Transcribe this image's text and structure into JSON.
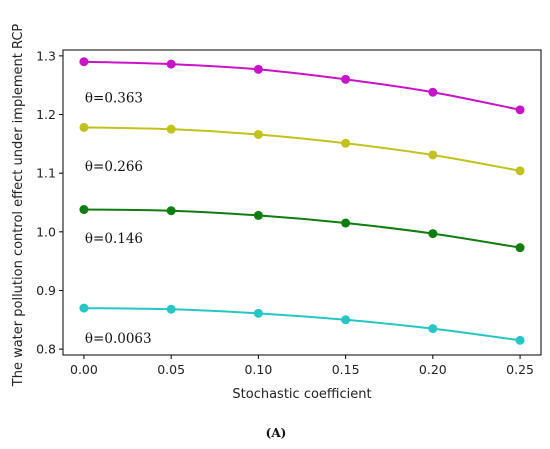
{
  "chart_data": {
    "type": "line",
    "xlabel": "Stochastic coefficient",
    "ylabel": "The water pollution control effect under implement RCP",
    "x": [
      0.0,
      0.05,
      0.1,
      0.15,
      0.2,
      0.25
    ],
    "x_ticks": [
      "0.00",
      "0.05",
      "0.10",
      "0.15",
      "0.20",
      "0.25"
    ],
    "y_ticks": [
      "0.8",
      "0.9",
      "1.0",
      "1.1",
      "1.2",
      "1.3"
    ],
    "xlim": [
      -0.012,
      0.262
    ],
    "ylim": [
      0.79,
      1.31
    ],
    "grid": false,
    "legend": "none",
    "series": [
      {
        "label_text": "θ=0.363",
        "label_at": [
          0.0,
          1.228
        ],
        "color": "#c814c8",
        "values": [
          1.29,
          1.286,
          1.277,
          1.26,
          1.238,
          1.208
        ]
      },
      {
        "label_text": "θ=0.266",
        "label_at": [
          0.0,
          1.111
        ],
        "color": "#c2c21e",
        "values": [
          1.178,
          1.175,
          1.166,
          1.151,
          1.131,
          1.104
        ]
      },
      {
        "label_text": "θ=0.146",
        "label_at": [
          0.0,
          0.989
        ],
        "color": "#0f7d0f",
        "values": [
          1.038,
          1.036,
          1.028,
          1.015,
          0.997,
          0.973
        ]
      },
      {
        "label_text": "θ=0.0063",
        "label_at": [
          0.0,
          0.818
        ],
        "color": "#26c6c6",
        "values": [
          0.87,
          0.868,
          0.861,
          0.85,
          0.835,
          0.815
        ]
      }
    ]
  },
  "caption": "(A)"
}
